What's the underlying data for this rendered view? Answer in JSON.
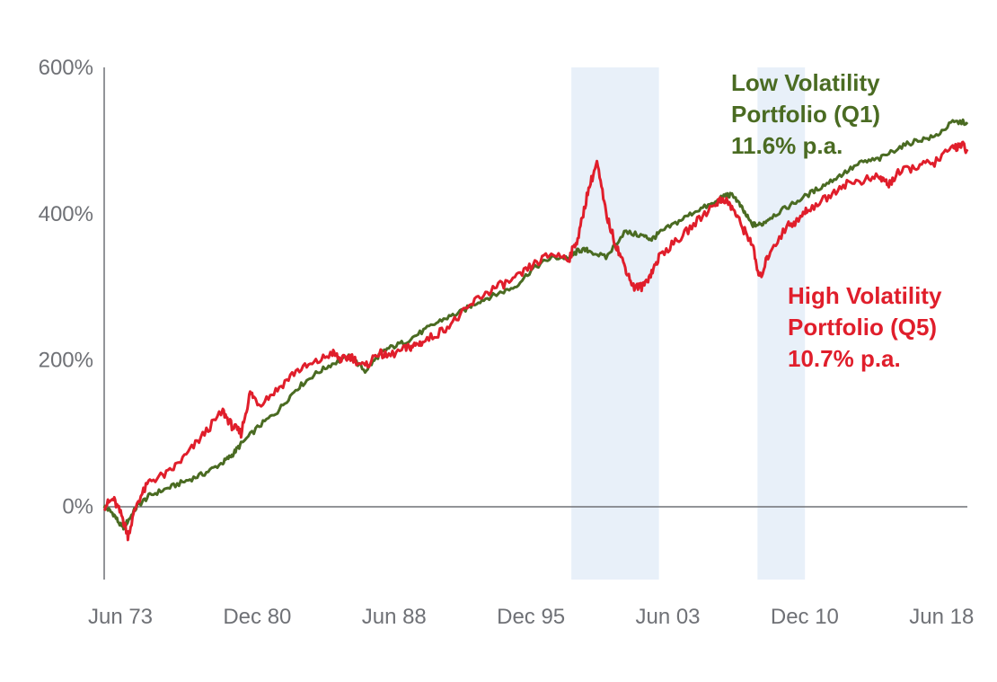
{
  "chart_data": {
    "type": "line",
    "title": "",
    "xlabel": "",
    "ylabel": "",
    "xlim": [
      1973.5,
      2020.8
    ],
    "ylim": [
      -100,
      600
    ],
    "y_ticks": [
      {
        "value": 0,
        "label": "0%"
      },
      {
        "value": 200,
        "label": "200%"
      },
      {
        "value": 400,
        "label": "400%"
      },
      {
        "value": 600,
        "label": "600%"
      }
    ],
    "x_ticks": [
      {
        "value": 1973.5,
        "label": "Jun 73"
      },
      {
        "value": 1981.0,
        "label": "Dec 80"
      },
      {
        "value": 1988.5,
        "label": "Jun 88"
      },
      {
        "value": 1996.0,
        "label": "Dec 95"
      },
      {
        "value": 2003.5,
        "label": "Jun 03"
      },
      {
        "value": 2011.0,
        "label": "Dec 10"
      },
      {
        "value": 2018.5,
        "label": "Jun 18"
      }
    ],
    "shaded_periods": [
      {
        "start": 1999.1,
        "end": 2003.9
      },
      {
        "start": 2009.3,
        "end": 2011.9
      }
    ],
    "grid": false,
    "series": [
      {
        "name": "Low Volatility Portfolio (Q1)",
        "color": "#4a6b22",
        "x": [
          1973.5,
          1974.0,
          1974.5,
          1974.8,
          1975.3,
          1976.0,
          1977.0,
          1978.0,
          1979.0,
          1980.0,
          1980.5,
          1981.0,
          1982.0,
          1983.0,
          1984.0,
          1985.0,
          1986.0,
          1987.0,
          1987.8,
          1988.5,
          1989.0,
          1990.0,
          1991.0,
          1992.0,
          1993.0,
          1994.0,
          1995.0,
          1996.0,
          1997.0,
          1998.0,
          1999.0,
          1999.5,
          2000.0,
          2001.0,
          2002.0,
          2003.0,
          2003.5,
          2004.0,
          2005.0,
          2006.0,
          2007.0,
          2007.5,
          2008.0,
          2008.5,
          2009.0,
          2009.5,
          2010.0,
          2011.0,
          2012.0,
          2013.0,
          2014.0,
          2015.0,
          2016.0,
          2017.0,
          2018.0,
          2019.0,
          2020.0,
          2020.8
        ],
        "y": [
          0,
          -10,
          -30,
          -20,
          0,
          15,
          25,
          35,
          45,
          60,
          70,
          85,
          110,
          130,
          160,
          180,
          195,
          205,
          185,
          205,
          215,
          225,
          240,
          255,
          265,
          280,
          290,
          300,
          325,
          340,
          340,
          350,
          350,
          340,
          375,
          370,
          365,
          375,
          390,
          405,
          415,
          425,
          425,
          405,
          385,
          385,
          395,
          410,
          425,
          440,
          455,
          470,
          475,
          490,
          500,
          505,
          525,
          525
        ]
      },
      {
        "name": "High Volatility Portfolio (Q5)",
        "color": "#e01e2b",
        "x": [
          1973.5,
          1974.0,
          1974.5,
          1974.8,
          1975.3,
          1976.0,
          1977.0,
          1978.0,
          1979.0,
          1980.0,
          1980.5,
          1981.0,
          1981.5,
          1982.0,
          1983.0,
          1984.0,
          1985.0,
          1986.0,
          1986.5,
          1987.0,
          1987.8,
          1988.5,
          1989.0,
          1990.0,
          1990.5,
          1991.0,
          1992.0,
          1993.0,
          1994.0,
          1995.0,
          1996.0,
          1997.0,
          1998.0,
          1999.0,
          1999.5,
          2000.0,
          2000.5,
          2001.0,
          2001.5,
          2002.0,
          2002.5,
          2003.0,
          2003.5,
          2004.0,
          2005.0,
          2006.0,
          2007.0,
          2007.5,
          2008.0,
          2008.5,
          2009.0,
          2009.4,
          2010.0,
          2011.0,
          2011.5,
          2012.0,
          2013.0,
          2014.0,
          2015.0,
          2016.0,
          2016.5,
          2017.0,
          2018.0,
          2019.0,
          2020.0,
          2020.5,
          2020.8
        ],
        "y": [
          0,
          10,
          -15,
          -40,
          5,
          35,
          45,
          70,
          100,
          130,
          110,
          100,
          155,
          140,
          160,
          185,
          195,
          210,
          200,
          205,
          190,
          210,
          205,
          215,
          220,
          225,
          240,
          260,
          285,
          300,
          310,
          330,
          345,
          340,
          370,
          430,
          470,
          400,
          360,
          330,
          300,
          300,
          320,
          345,
          365,
          390,
          415,
          420,
          405,
          380,
          360,
          310,
          350,
          385,
          390,
          405,
          420,
          440,
          445,
          450,
          440,
          455,
          465,
          470,
          490,
          495,
          485
        ]
      }
    ],
    "annotations": [
      {
        "series": 0,
        "lines": [
          "Low Volatility",
          "Portfolio (Q1)",
          "11.6% p.a."
        ]
      },
      {
        "series": 1,
        "lines": [
          "High Volatility",
          "Portfolio (Q5)",
          "10.7% p.a."
        ]
      }
    ]
  }
}
